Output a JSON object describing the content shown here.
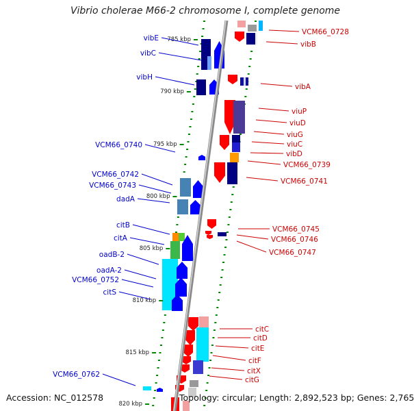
{
  "title": "Vibrio cholerae M66-2 chromosome I, complete genome",
  "accession_text": "Accession: NC_012578",
  "topology_text": "Topology: circular; Length: 2,892,523 bp; Genes: 2,765",
  "colors": {
    "left_label": "#0000cc",
    "right_label": "#cc0000",
    "axis": "#999999",
    "tick": "#008800",
    "forward_gene": "#0000ff",
    "reverse_gene": "#ff0000",
    "cyan_gene": "#00e5ff",
    "navy_gene": "#000080",
    "purple_gene": "#4b3a96",
    "steel_gene": "#4682b4"
  },
  "ruler_labels": [
    "785 kbp",
    "790 kbp",
    "795 kbp",
    "800 kbp",
    "805 kbp",
    "810 kbp",
    "815 kbp",
    "820 kbp"
  ],
  "left_labels": [
    "vibE",
    "vibC",
    "vibH",
    "VCM66_0740",
    "VCM66_0742",
    "VCM66_0743",
    "dadA",
    "citB",
    "citA",
    "oadB-2",
    "oadA-2",
    "VCM66_0752",
    "citS",
    "VCM66_0762"
  ],
  "right_labels": [
    "VCM66_0728",
    "vibB",
    "vibA",
    "viuP",
    "viuD",
    "viuG",
    "viuC",
    "vibD",
    "VCM66_0739",
    "VCM66_0741",
    "VCM66_0745",
    "VCM66_0746",
    "VCM66_0747",
    "citC",
    "citD",
    "citE",
    "citF",
    "citX",
    "citG"
  ]
}
